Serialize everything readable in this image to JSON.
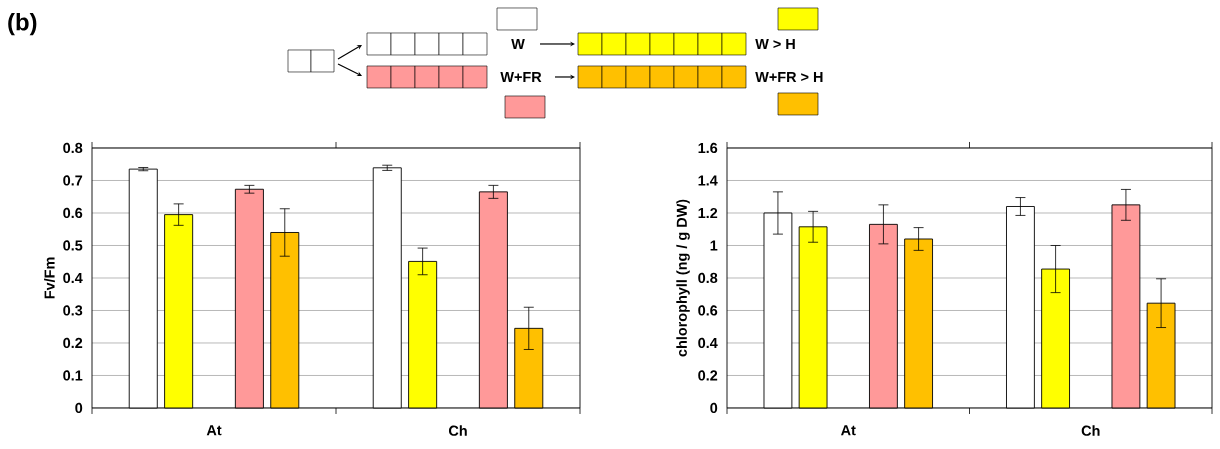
{
  "chart_data": [
    {
      "type": "bar",
      "annotations": [
        "(b)"
      ],
      "ylabel": "Fv/Fm",
      "categories": [
        "At",
        "Ch"
      ],
      "ylim": [
        0,
        0.8
      ],
      "yticks": [
        0,
        0.1,
        0.2,
        0.3,
        0.4,
        0.5,
        0.6,
        0.7,
        0.8
      ],
      "grid": "y",
      "legend": "top",
      "series": [
        {
          "name": "W",
          "color": "#ffffff",
          "values": [
            0.735,
            0.739
          ],
          "errors": [
            0.005,
            0.008
          ]
        },
        {
          "name": "W > H",
          "color": "#ffff00",
          "values": [
            0.595,
            0.451
          ],
          "errors": [
            0.033,
            0.041
          ]
        },
        {
          "name": "W+FR",
          "color": "#ff9999",
          "values": [
            0.673,
            0.665
          ],
          "errors": [
            0.012,
            0.02
          ]
        },
        {
          "name": "W+FR > H",
          "color": "#ffc000",
          "values": [
            0.54,
            0.245
          ],
          "errors": [
            0.073,
            0.065
          ]
        }
      ]
    },
    {
      "type": "bar",
      "ylabel": "chlorophyll (ng / g DW)",
      "categories": [
        "At",
        "Ch"
      ],
      "ylim": [
        0,
        1.6
      ],
      "yticks": [
        0,
        0.2,
        0.4,
        0.6,
        0.8,
        1,
        1.2,
        1.4,
        1.6
      ],
      "grid": "y",
      "series": [
        {
          "color": "#ffffff",
          "values": [
            1.2,
            1.24
          ],
          "errors": [
            0.13,
            0.055
          ]
        },
        {
          "color": "#ffff00",
          "values": [
            1.115,
            0.855
          ],
          "errors": [
            0.095,
            0.145
          ]
        },
        {
          "color": "#ff9999",
          "values": [
            1.13,
            1.25
          ],
          "errors": [
            0.12,
            0.095
          ]
        },
        {
          "color": "#ffc000",
          "values": [
            1.04,
            0.645
          ],
          "errors": [
            0.07,
            0.15
          ]
        }
      ]
    }
  ]
}
